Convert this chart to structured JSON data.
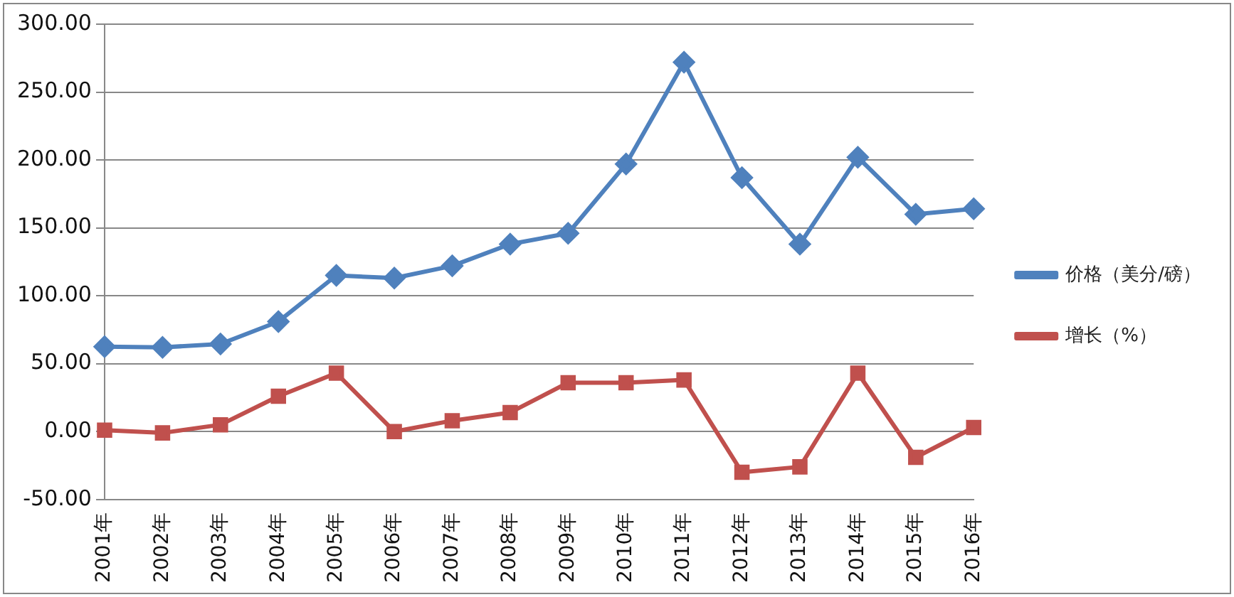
{
  "chart_data": {
    "type": "line",
    "categories": [
      "2001年",
      "2002年",
      "2003年",
      "2004年",
      "2005年",
      "2006年",
      "2007年",
      "2008年",
      "2009年",
      "2010年",
      "2011年",
      "2012年",
      "2013年",
      "2014年",
      "2015年",
      "2016年"
    ],
    "series": [
      {
        "name": "价格（美分/磅）",
        "color": "#4f81bd",
        "marker": "diamond",
        "values": [
          62.5,
          62,
          64.5,
          81,
          115,
          113,
          122,
          138,
          146,
          197,
          272,
          187,
          138,
          202,
          160,
          164
        ]
      },
      {
        "name": "增长（%）",
        "color": "#c0504d",
        "marker": "square",
        "values": [
          1,
          -1,
          5,
          26,
          43,
          0,
          8,
          14,
          36,
          36,
          38,
          -30,
          -26,
          43,
          -19,
          3
        ]
      }
    ],
    "ylim": [
      -50,
      300
    ],
    "yticks": [
      {
        "value": -50,
        "label": "-50.00"
      },
      {
        "value": 0,
        "label": "0.00"
      },
      {
        "value": 50,
        "label": "50.00"
      },
      {
        "value": 100,
        "label": "100.00"
      },
      {
        "value": 150,
        "label": "150.00"
      },
      {
        "value": 200,
        "label": "200.00"
      },
      {
        "value": 250,
        "label": "250.00"
      },
      {
        "value": 300,
        "label": "300.00"
      }
    ],
    "grid": "y",
    "legend": "right",
    "line_style": "solid"
  }
}
